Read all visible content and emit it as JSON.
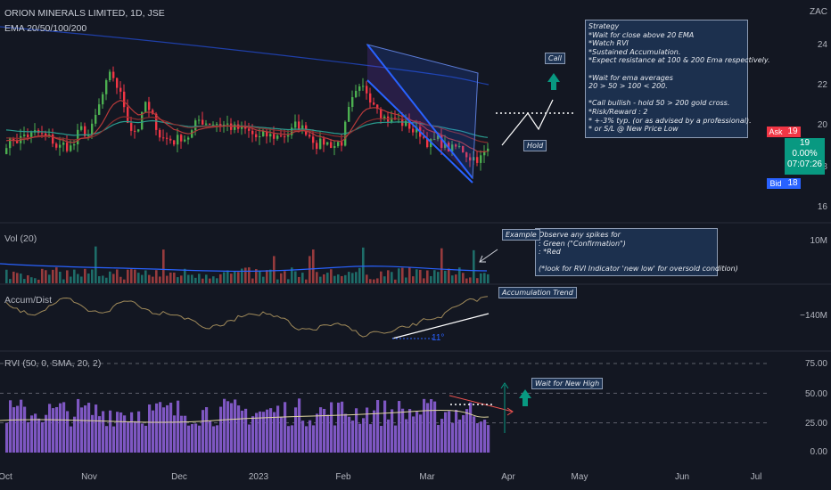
{
  "header": {
    "symbol_line": "ORION MINERALS LIMITED, 1D, JSE",
    "indicator_line": "EMA 20/50/100/200"
  },
  "panes": {
    "volume_title": "Vol (20)",
    "ad_title": "Accum/Dist",
    "rvi_title": "RVI (50, 0, SMA, 20, 2)"
  },
  "axes": {
    "currency": "ZAC",
    "price_ticks": [
      "24",
      "22",
      "20",
      "18",
      "16"
    ],
    "volume_tick": "10M",
    "ad_tick": "−140M",
    "rvi_ticks": [
      "75.00",
      "50.00",
      "25.00",
      "0.00"
    ],
    "x_ticks": [
      "Oct",
      "Nov",
      "Dec",
      "2023",
      "Feb",
      "Mar",
      "Apr",
      "May",
      "Jun",
      "Jul"
    ]
  },
  "quote": {
    "ask_label": "Ask",
    "ask_value": "19",
    "last_price": "19",
    "change": "0.00%",
    "countdown": "07:07:26",
    "bid_label": "Bid",
    "bid_value": "18"
  },
  "annotations": {
    "strategy_lines": [
      "Strategy",
      "*Wait for close above 20 EMA",
      "*Watch RVI",
      "*Sustained Accumulation.",
      "*Expect resistance at 100 & 200 Ema respectively.",
      "",
      "*Wait for ema averages",
      "20 > 50 > 100 < 200.",
      "",
      "*Call bullish - hold 50 > 200 gold cross.",
      "*Risk/Reward : 2",
      "* +-3% typ. (or as advised by a professional).",
      "* or S/L @ New Price Low"
    ],
    "call": "Call",
    "hold": "Hold",
    "example": "Example",
    "volume_note_lines": [
      "Observe any spikes for",
      ": Green (\"Confirmation\")",
      ": *Red",
      "",
      "(*look for RVI Indicator 'new low' for oversold condition)"
    ],
    "accumulation_trend": "Accumulation Trend",
    "angle": "11°",
    "wait_new_high": "Wait for New High"
  },
  "colors": {
    "background": "#131722",
    "up": "#26a69a",
    "down": "#ef5350",
    "candle_up": "#4caf50",
    "candle_down": "#f23645",
    "ema20": "#b83a3a",
    "ema50": "#8a2e2e",
    "ema100": "#2a9d8f",
    "ema200": "#1f3fa8",
    "rvi": "#7e57c2",
    "accent": "#2962ff"
  },
  "chart_data": {
    "type": "candlestick",
    "price_range": [
      15.4,
      25.0
    ],
    "volume_range": [
      0,
      10000000
    ],
    "rvi_range": [
      0,
      75
    ],
    "x_labels": [
      "Oct",
      "Nov",
      "Dec",
      "2023",
      "Feb",
      "Mar",
      "Apr",
      "May",
      "Jun",
      "Jul"
    ]
  }
}
